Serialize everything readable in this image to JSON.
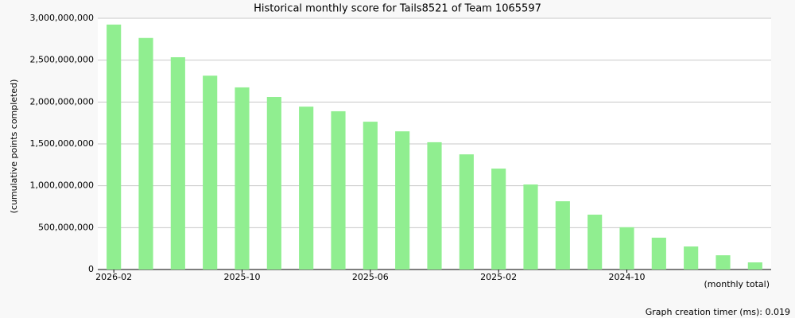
{
  "chart_data": {
    "type": "bar",
    "title": "Historical monthly score for Tails8521 of Team 1065597",
    "y_label": "(cumulative points completed)",
    "x_label": "(monthly total)",
    "footer": "Graph creation timer (ms): 0.019",
    "categories": [
      "2026-02",
      null,
      null,
      null,
      "2025-10",
      null,
      null,
      null,
      "2025-06",
      null,
      null,
      null,
      "2025-02",
      null,
      null,
      null,
      "2024-10",
      null,
      null,
      null,
      null
    ],
    "values": [
      2925000000,
      2765000000,
      2535000000,
      2315000000,
      2175000000,
      2060000000,
      1945000000,
      1890000000,
      1765000000,
      1650000000,
      1520000000,
      1375000000,
      1205000000,
      1015000000,
      815000000,
      655000000,
      505000000,
      380000000,
      275000000,
      170000000,
      85000000
    ],
    "color": "#90ee90",
    "ylim": [
      0,
      3000000000
    ],
    "yticks": [
      0,
      {
        "value": 500000000,
        "label": "500,000,000"
      },
      {
        "value": 1000000000,
        "label": "1,000,000,000"
      },
      {
        "value": 1500000000,
        "label": "1,500,000,000"
      },
      {
        "value": 2000000000,
        "label": "2,000,000,000"
      },
      {
        "value": 2500000000,
        "label": "2,500,000,000"
      },
      {
        "value": 3000000000,
        "label": "3,000,000,000"
      }
    ],
    "grid": true
  }
}
